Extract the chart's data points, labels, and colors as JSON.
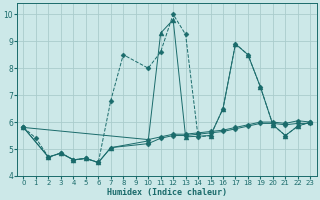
{
  "xlabel": "Humidex (Indice chaleur)",
  "bg_color": "#cce8e8",
  "grid_color": "#aacccc",
  "line_color": "#1a6b6b",
  "xlim": [
    -0.5,
    23.5
  ],
  "ylim": [
    4.0,
    10.4
  ],
  "xticks": [
    0,
    1,
    2,
    3,
    4,
    5,
    6,
    7,
    8,
    9,
    10,
    11,
    12,
    13,
    14,
    15,
    16,
    17,
    18,
    19,
    20,
    21,
    22,
    23
  ],
  "yticks": [
    4,
    5,
    6,
    7,
    8,
    9,
    10
  ],
  "lines": [
    {
      "x": [
        0,
        1,
        2,
        3,
        4,
        5,
        6,
        7,
        8,
        10,
        11,
        12,
        13,
        14,
        15,
        16,
        17,
        18,
        19,
        20,
        21,
        22,
        23
      ],
      "y": [
        5.8,
        5.4,
        4.7,
        4.85,
        4.6,
        4.65,
        4.5,
        6.8,
        8.5,
        8.0,
        8.6,
        10.0,
        9.25,
        5.45,
        5.5,
        6.5,
        8.9,
        8.5,
        7.3,
        5.9,
        5.5,
        5.85,
        6.0
      ],
      "marker": "D",
      "markersize": 2.5,
      "linestyle": "--"
    },
    {
      "x": [
        0,
        2,
        3,
        4,
        5,
        6,
        7,
        10,
        11,
        12,
        13,
        15,
        16,
        17,
        18,
        19,
        20,
        21,
        22,
        23
      ],
      "y": [
        5.8,
        4.7,
        4.85,
        4.6,
        4.65,
        4.5,
        5.05,
        5.3,
        9.3,
        9.8,
        5.45,
        5.5,
        6.5,
        8.9,
        8.5,
        7.3,
        5.9,
        5.5,
        5.85,
        6.0
      ],
      "marker": "^",
      "markersize": 3.5,
      "linestyle": "-"
    },
    {
      "x": [
        0,
        2,
        3,
        4,
        5,
        6,
        7,
        10,
        11,
        12,
        13,
        14,
        15,
        16,
        17,
        18,
        19,
        20,
        21,
        22,
        23
      ],
      "y": [
        5.8,
        4.7,
        4.85,
        4.6,
        4.65,
        4.5,
        5.05,
        5.2,
        5.4,
        5.5,
        5.5,
        5.55,
        5.6,
        5.65,
        5.75,
        5.85,
        5.95,
        5.95,
        5.9,
        5.95,
        5.95
      ],
      "marker": "D",
      "markersize": 2.5,
      "linestyle": "-"
    },
    {
      "x": [
        0,
        10,
        11,
        12,
        13,
        14,
        15,
        16,
        17,
        18,
        19,
        20,
        21,
        22,
        23
      ],
      "y": [
        5.8,
        5.35,
        5.45,
        5.55,
        5.55,
        5.6,
        5.65,
        5.7,
        5.8,
        5.9,
        6.0,
        6.0,
        5.95,
        6.05,
        6.0
      ],
      "marker": "D",
      "markersize": 2.5,
      "linestyle": "-"
    }
  ]
}
